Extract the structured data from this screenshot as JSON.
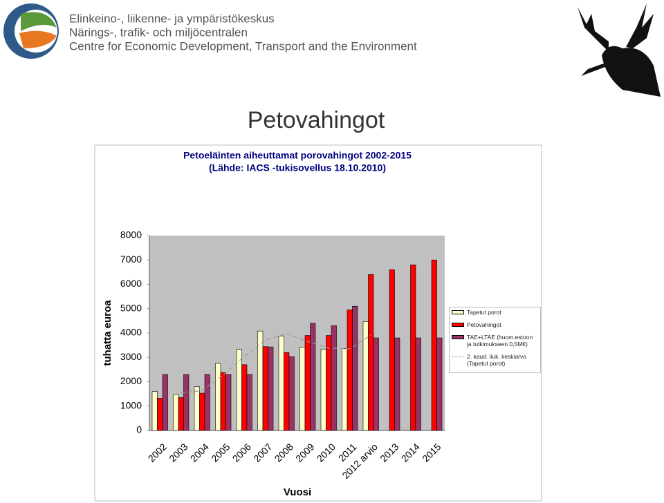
{
  "header": {
    "lines": [
      "Elinkeino-, liikenne- ja ympäristökeskus",
      "Närings-, trafik- och miljöcentralen",
      "Centre for Economic Development, Transport and the Environment"
    ]
  },
  "slide_title": "Petovahingot",
  "chart_data": {
    "type": "bar",
    "title": "Petoeläinten aiheuttamat porovahingot 2002-2015",
    "subtitle": "(Lähde: IACS -tukisovellus 18.10.2010)",
    "y_label": "tuhatta euroa",
    "x_label": "Vuosi",
    "categories": [
      "2002",
      "2003",
      "2004",
      "2005",
      "2006",
      "2007",
      "2008",
      "2009",
      "2010",
      "2011",
      "2012 arvio",
      "2013",
      "2014",
      "2015"
    ],
    "series": [
      {
        "name": "Tapetut porot",
        "type": "bar",
        "color": "#ffffcc",
        "values": [
          1600,
          1480,
          1800,
          2750,
          3330,
          4080,
          3880,
          3420,
          3340,
          3360,
          4470,
          null,
          null,
          null
        ]
      },
      {
        "name": "Petovahingot",
        "type": "bar",
        "color": "#ff0000",
        "values": [
          1320,
          1350,
          1530,
          2380,
          2700,
          3440,
          3200,
          3900,
          3900,
          4950,
          6400,
          6600,
          6800,
          7000
        ]
      },
      {
        "name": "TAE+LTAE (huom.estoon ja tutkimukseen 0,5M€)",
        "type": "bar",
        "color": "#993366",
        "values": [
          2300,
          2300,
          2300,
          2300,
          2300,
          3430,
          3030,
          4400,
          4300,
          5100,
          3800,
          3800,
          3800,
          3800
        ]
      },
      {
        "name": "2. kaud. liuk. keskiarvo (Tapetut porot)",
        "type": "line",
        "color": "#999999",
        "values": [
          null,
          1540,
          1640,
          2275,
          3040,
          3700,
          3980,
          3650,
          3380,
          3350,
          3915,
          null,
          null,
          null
        ]
      }
    ],
    "ylim": [
      0,
      8000
    ],
    "yticks": [
      0,
      1000,
      2000,
      3000,
      4000,
      5000,
      6000,
      7000,
      8000
    ],
    "grid": false,
    "legend": "right"
  }
}
